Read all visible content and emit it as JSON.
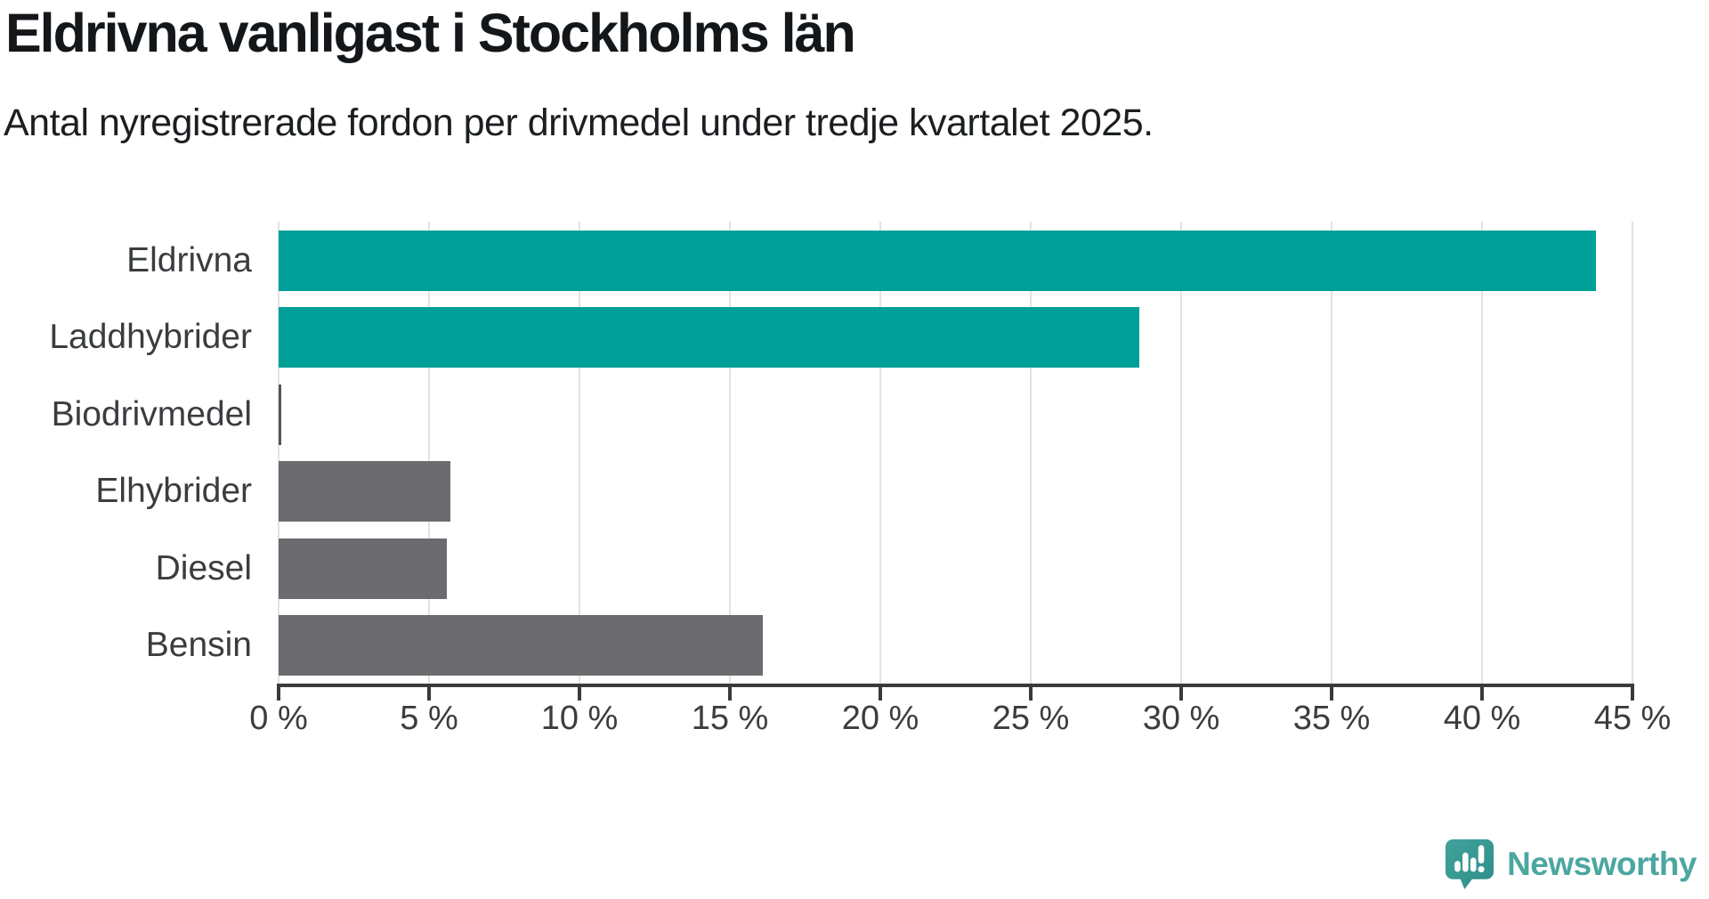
{
  "header": {
    "title": "Eldrivna vanligast i Stockholms län",
    "subtitle": "Antal nyregistrerade fordon per drivmedel under tredje kvartalet 2025."
  },
  "chart_data": {
    "type": "bar",
    "orientation": "horizontal",
    "title": "Eldrivna vanligast i Stockholms län",
    "subtitle": "Antal nyregistrerade fordon per drivmedel under tredje kvartalet 2025.",
    "categories": [
      "Eldrivna",
      "Laddhybrider",
      "Biodrivmedel",
      "Elhybrider",
      "Diesel",
      "Bensin"
    ],
    "values": [
      43.8,
      28.6,
      0.1,
      5.7,
      5.6,
      16.1
    ],
    "unit": "%",
    "xlabel": "",
    "ylabel": "",
    "xlim": [
      0,
      45
    ],
    "tick_values": [
      0,
      5,
      10,
      15,
      20,
      25,
      30,
      35,
      40,
      45
    ],
    "tick_labels": [
      "0 %",
      "5 %",
      "10 %",
      "15 %",
      "20 %",
      "25 %",
      "30 %",
      "35 %",
      "40 %",
      "45 %"
    ],
    "grid": true,
    "legend": "none",
    "bar_colors": [
      "#00A099",
      "#00A099",
      "#55555A",
      "#6B6B70",
      "#6B6B70",
      "#6B6B70"
    ],
    "highlight_color": "#00A099",
    "default_color": "#6B6B70",
    "gridline_color": "#e2e2e2",
    "axis_color": "#3a3a3a"
  },
  "branding": {
    "logo_text": "Newsworthy",
    "logo_text_color": "#4BA7A0",
    "logo_bubble_color": "#38948E"
  }
}
